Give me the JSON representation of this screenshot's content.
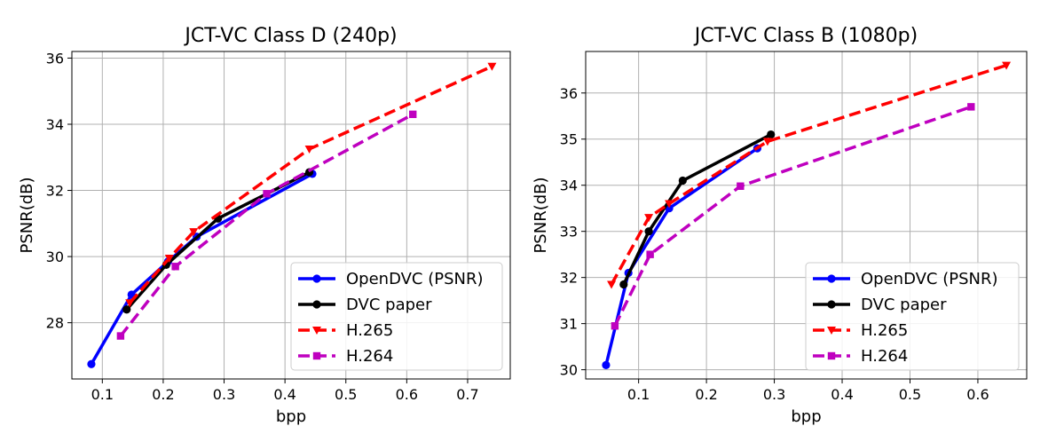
{
  "chart_data": [
    {
      "type": "line",
      "title": "JCT-VC Class D (240p)",
      "xlabel": "bpp",
      "ylabel": "PSNR(dB)",
      "xlim": [
        0.05,
        0.77
      ],
      "ylim": [
        26.3,
        36.2
      ],
      "xticks": [
        0.1,
        0.2,
        0.3,
        0.4,
        0.5,
        0.6,
        0.7
      ],
      "xtick_labels": [
        "0.1",
        "0.2",
        "0.3",
        "0.4",
        "0.5",
        "0.6",
        "0.7"
      ],
      "yticks": [
        28,
        30,
        32,
        34,
        36
      ],
      "ytick_labels": [
        "28",
        "30",
        "32",
        "34",
        "36"
      ],
      "grid": true,
      "legend_position": "lower-right",
      "series": [
        {
          "name": "OpenDVC (PSNR)",
          "color": "#0000ff",
          "style": "solid",
          "marker": "circle",
          "x": [
            0.082,
            0.148,
            0.208,
            0.255,
            0.445
          ],
          "y": [
            26.75,
            28.85,
            29.85,
            30.6,
            32.5
          ]
        },
        {
          "name": "DVC paper",
          "color": "#000000",
          "style": "solid",
          "marker": "circle",
          "x": [
            0.14,
            0.205,
            0.29,
            0.44
          ],
          "y": [
            28.4,
            29.75,
            31.15,
            32.55
          ]
        },
        {
          "name": "H.265",
          "color": "#ff0000",
          "style": "dashed",
          "marker": "triangle-down",
          "x": [
            0.145,
            0.21,
            0.25,
            0.44,
            0.74
          ],
          "y": [
            28.6,
            29.95,
            30.75,
            33.25,
            35.75
          ]
        },
        {
          "name": "H.264",
          "color": "#bf00bf",
          "style": "dashed",
          "marker": "square",
          "x": [
            0.13,
            0.22,
            0.37,
            0.61
          ],
          "y": [
            27.6,
            29.7,
            31.9,
            34.3
          ]
        }
      ]
    },
    {
      "type": "line",
      "title": "JCT-VC Class B (1080p)",
      "xlabel": "bpp",
      "ylabel": "PSNR(dB)",
      "xlim": [
        0.022,
        0.672
      ],
      "ylim": [
        29.8,
        36.9
      ],
      "xticks": [
        0.1,
        0.2,
        0.3,
        0.4,
        0.5,
        0.6
      ],
      "xtick_labels": [
        "0.1",
        "0.2",
        "0.3",
        "0.4",
        "0.5",
        "0.6"
      ],
      "yticks": [
        30,
        31,
        32,
        33,
        34,
        35,
        36
      ],
      "ytick_labels": [
        "30",
        "31",
        "32",
        "33",
        "34",
        "35",
        "36"
      ],
      "grid": true,
      "legend_position": "lower-right",
      "series": [
        {
          "name": "OpenDVC (PSNR)",
          "color": "#0000ff",
          "style": "solid",
          "marker": "circle",
          "x": [
            0.052,
            0.085,
            0.145,
            0.275
          ],
          "y": [
            30.1,
            32.1,
            33.5,
            34.8
          ]
        },
        {
          "name": "DVC paper",
          "color": "#000000",
          "style": "solid",
          "marker": "circle",
          "x": [
            0.078,
            0.115,
            0.165,
            0.295
          ],
          "y": [
            31.85,
            33.0,
            34.1,
            35.1
          ]
        },
        {
          "name": "H.265",
          "color": "#ff0000",
          "style": "dashed",
          "marker": "triangle-down",
          "x": [
            0.06,
            0.115,
            0.145,
            0.29,
            0.642
          ],
          "y": [
            31.85,
            33.3,
            33.6,
            34.95,
            36.6
          ]
        },
        {
          "name": "H.264",
          "color": "#bf00bf",
          "style": "dashed",
          "marker": "square",
          "x": [
            0.065,
            0.117,
            0.25,
            0.59
          ],
          "y": [
            30.95,
            32.5,
            33.98,
            35.7
          ]
        }
      ]
    }
  ]
}
